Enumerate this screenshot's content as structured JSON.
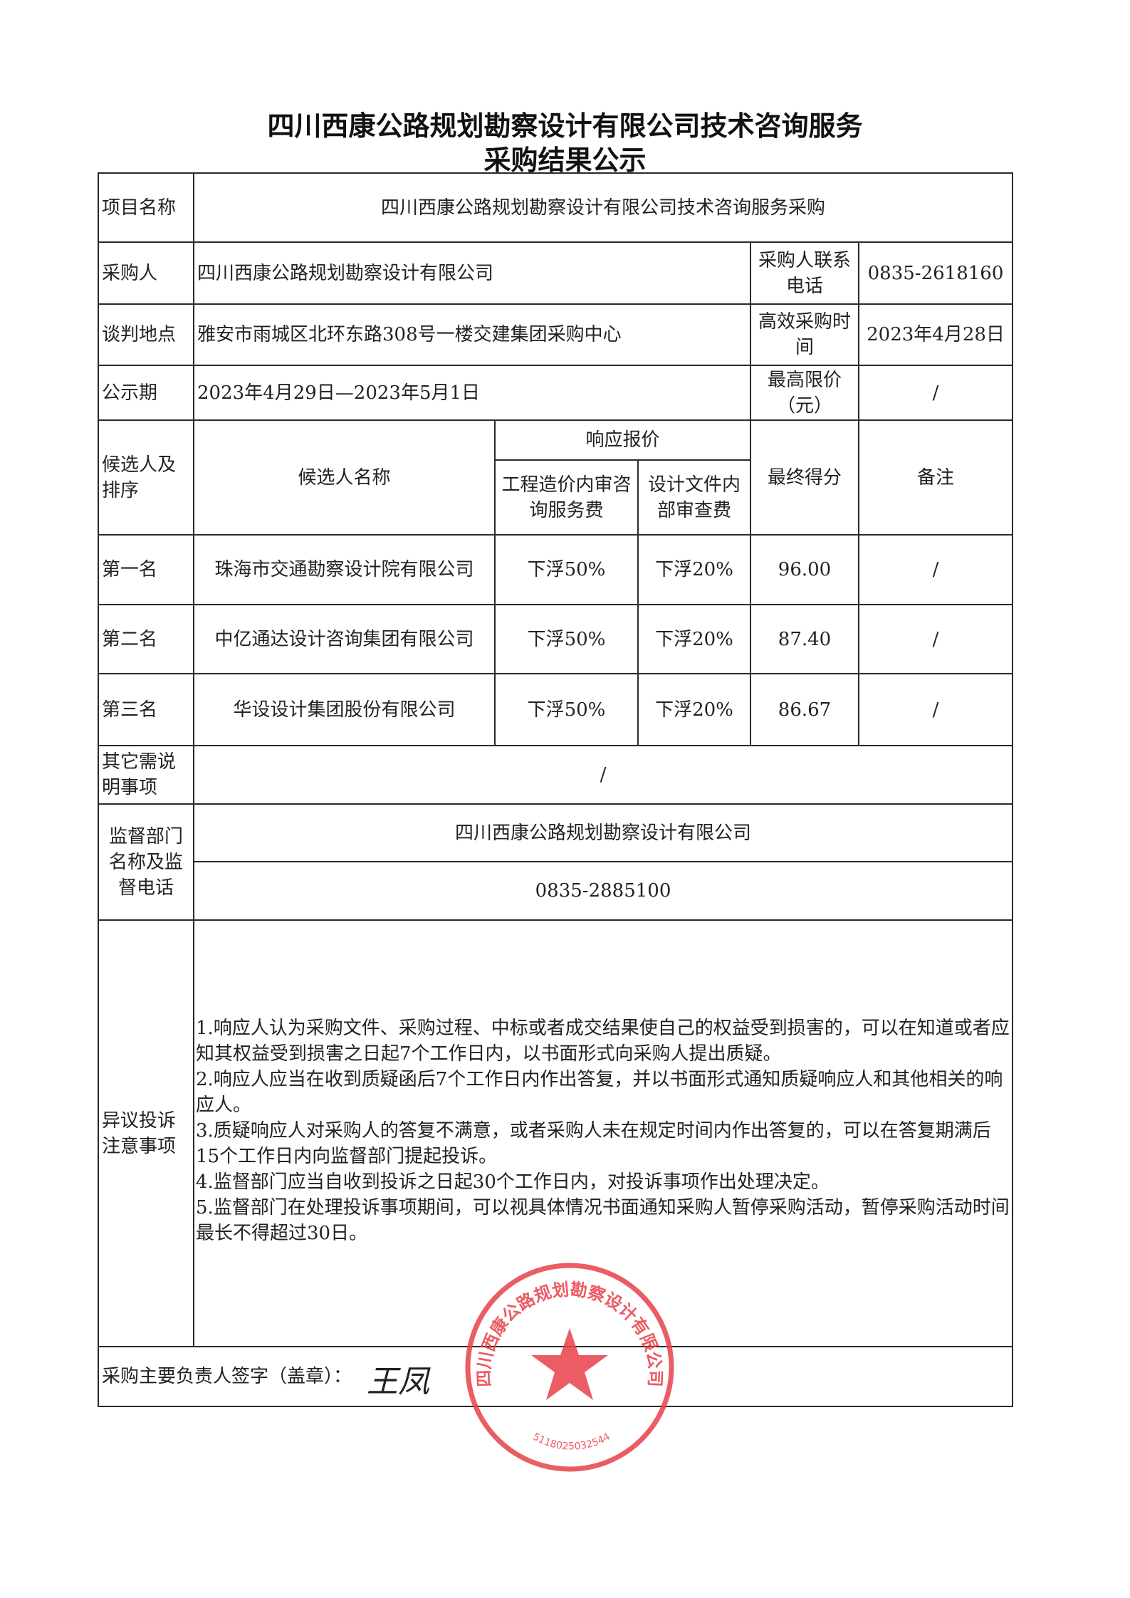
{
  "title": {
    "line1": "四川西康公路规划勘察设计有限公司技术咨询服务",
    "line2": "采购结果公示"
  },
  "info": {
    "project_label": "项目名称",
    "project_value": "四川西康公路规划勘察设计有限公司技术咨询服务采购",
    "buyer_label": "采购人",
    "buyer_value": "四川西康公路规划勘察设计有限公司",
    "buyer_phone_label": "采购人联系电话",
    "buyer_phone_value": "0835-2618160",
    "location_label": "谈判地点",
    "location_value": "雅安市雨城区北环东路308号一楼交建集团采购中心",
    "time_label": "高效采购时间",
    "time_value": "2023年4月28日",
    "period_label": "公示期",
    "period_value": "2023年4月29日—2023年5月1日",
    "max_price_label": "最高限价（元）",
    "max_price_value": "/"
  },
  "candidates": {
    "headers": {
      "rank": "候选人及排序",
      "name": "候选人名称",
      "quote": "响应报价",
      "fee1": "工程造价内审咨询服务费",
      "fee2": "设计文件内部审查费",
      "score": "最终得分",
      "remark": "备注"
    },
    "rows": [
      {
        "rank": "第一名",
        "name": "珠海市交通勘察设计院有限公司",
        "fee1": "下浮50%",
        "fee2": "下浮20%",
        "score": "96.00",
        "remark": "/"
      },
      {
        "rank": "第二名",
        "name": "中亿通达设计咨询集团有限公司",
        "fee1": "下浮50%",
        "fee2": "下浮20%",
        "score": "87.40",
        "remark": "/"
      },
      {
        "rank": "第三名",
        "name": "华设设计集团股份有限公司",
        "fee1": "下浮50%",
        "fee2": "下浮20%",
        "score": "86.67",
        "remark": "/"
      }
    ]
  },
  "other": {
    "label": "其它需说明事项",
    "value": "/"
  },
  "supervisor": {
    "label": "监督部门名称及监督电话",
    "name": "四川西康公路规划勘察设计有限公司",
    "phone": "0835-2885100"
  },
  "objection": {
    "label": "异议投诉注意事项",
    "items": [
      "1.响应人认为采购文件、采购过程、中标或者成交结果使自己的权益受到损害的，可以在知道或者应知其权益受到损害之日起7个工作日内，以书面形式向采购人提出质疑。",
      "2.响应人应当在收到质疑函后7个工作日内作出答复，并以书面形式通知质疑响应人和其他相关的响应人。",
      "3.质疑响应人对采购人的答复不满意，或者采购人未在规定时间内作出答复的，可以在答复期满后15个工作日内向监督部门提起投诉。",
      "4.监督部门应当自收到投诉之日起30个工作日内，对投诉事项作出处理决定。",
      "5.监督部门在处理投诉事项期间，可以视具体情况书面通知采购人暂停采购活动，暂停采购活动时间最长不得超过30日。"
    ]
  },
  "signature_row": {
    "label": "采购主要负责人签字（盖章）：",
    "signature": "王凤"
  },
  "stamp": {
    "text": "四川西康公路规划勘察设计有限公司",
    "code": "5118025032544",
    "color": "#e8404a"
  }
}
